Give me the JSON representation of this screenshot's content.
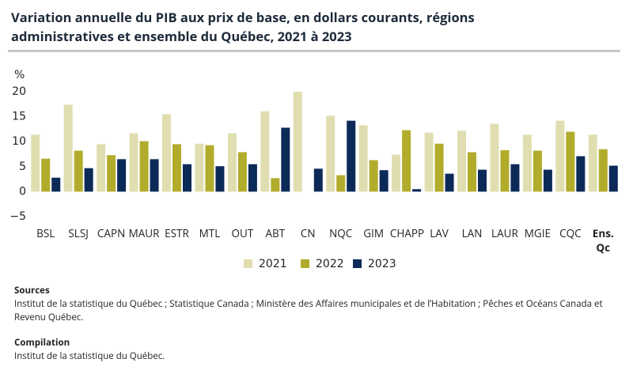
{
  "chart_data": {
    "type": "bar",
    "title": "Variation annuelle du PIB aux prix de base, en dollars courants, régions administratives et ensemble du Québec, 2021 à 2023",
    "y_label": "%",
    "categories": [
      "BSL",
      "SLSJ",
      "CAPN",
      "MAUR",
      "ESTR",
      "MTL",
      "OUT",
      "ABT",
      "CN",
      "NQC",
      "GIM",
      "CHAPP",
      "LAV",
      "LAN",
      "LAUR",
      "MGIE",
      "CQC",
      "Ens. Qc"
    ],
    "series": [
      {
        "name": "2021",
        "color": "#e0deb0",
        "values": [
          11.4,
          17.4,
          9.5,
          11.7,
          15.5,
          9.6,
          11.7,
          16.1,
          20.0,
          15.2,
          13.3,
          7.4,
          11.8,
          12.2,
          13.6,
          11.4,
          14.2,
          11.4
        ]
      },
      {
        "name": "2022",
        "color": "#b2ac2c",
        "values": [
          6.6,
          8.2,
          7.3,
          10.1,
          9.5,
          9.3,
          7.9,
          2.7,
          null,
          3.3,
          6.3,
          12.3,
          9.6,
          7.9,
          8.3,
          8.2,
          12.0,
          8.5
        ]
      },
      {
        "name": "2023",
        "color": "#0c2a57",
        "values": [
          2.8,
          4.7,
          6.5,
          6.5,
          5.5,
          5.1,
          5.5,
          12.8,
          4.6,
          14.2,
          4.3,
          0.5,
          3.6,
          4.4,
          5.5,
          4.4,
          7.1,
          5.2
        ]
      }
    ],
    "ylim": [
      -5,
      20
    ],
    "yticks": [
      {
        "value": -5,
        "label": "−5"
      },
      0,
      5,
      10,
      15,
      20
    ],
    "grid": false,
    "legend": "bottom"
  },
  "footer": {
    "sources_heading": "Sources",
    "sources_text": "Institut de la statistique du Québec ; Statistique Canada ; Ministère des Affaires municipales et de l’Habitation ; Pêches et Océans Canada et Revenu Québec.",
    "compilation_heading": "Compilation",
    "compilation_text": "Institut de la statistique du Québec."
  }
}
